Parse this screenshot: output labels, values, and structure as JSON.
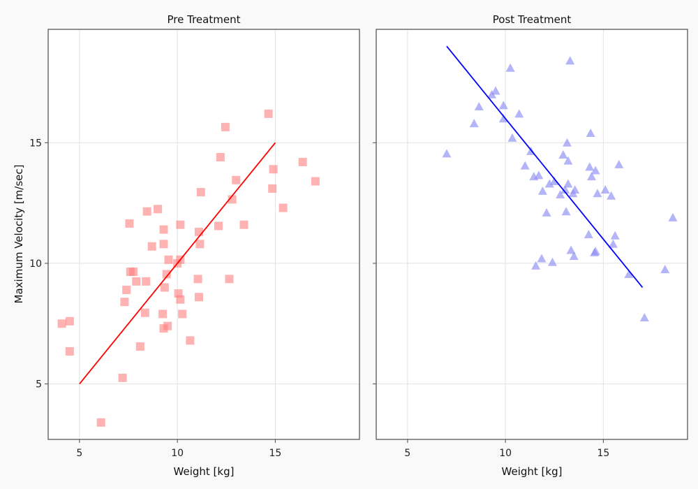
{
  "chart_data": [
    {
      "type": "scatter",
      "title": "Pre Treatment",
      "xlabel": "Weight [kg]",
      "ylabel": "Maximum Velocity [m/sec]",
      "xlim": [
        3.4,
        19.3
      ],
      "ylim": [
        2.7,
        19.7
      ],
      "xticks": [
        5,
        10,
        15
      ],
      "yticks": [
        5,
        10,
        15
      ],
      "grid": true,
      "marker": "square",
      "color": "#ff7f7f",
      "line_color": "#ff0000",
      "points": [
        [
          4.1,
          7.5
        ],
        [
          4.5,
          7.6
        ],
        [
          4.5,
          6.35
        ],
        [
          6.1,
          3.4
        ],
        [
          7.2,
          5.25
        ],
        [
          7.3,
          8.4
        ],
        [
          7.4,
          8.9
        ],
        [
          7.55,
          11.65
        ],
        [
          7.6,
          9.65
        ],
        [
          7.75,
          9.65
        ],
        [
          7.9,
          9.25
        ],
        [
          8.1,
          6.55
        ],
        [
          8.35,
          7.95
        ],
        [
          8.4,
          9.25
        ],
        [
          8.45,
          12.15
        ],
        [
          8.7,
          10.7
        ],
        [
          9.0,
          12.25
        ],
        [
          9.25,
          7.9
        ],
        [
          9.3,
          7.3
        ],
        [
          9.3,
          10.8
        ],
        [
          9.3,
          11.4
        ],
        [
          9.35,
          9.0
        ],
        [
          9.45,
          9.55
        ],
        [
          9.5,
          7.4
        ],
        [
          9.55,
          10.15
        ],
        [
          10.0,
          10.0
        ],
        [
          10.05,
          8.75
        ],
        [
          10.15,
          10.15
        ],
        [
          10.15,
          8.5
        ],
        [
          10.15,
          11.6
        ],
        [
          10.25,
          7.9
        ],
        [
          10.65,
          6.8
        ],
        [
          11.05,
          9.35
        ],
        [
          11.1,
          8.6
        ],
        [
          11.1,
          11.3
        ],
        [
          11.15,
          10.8
        ],
        [
          11.2,
          12.95
        ],
        [
          12.1,
          11.55
        ],
        [
          12.2,
          14.4
        ],
        [
          12.45,
          15.65
        ],
        [
          12.65,
          9.35
        ],
        [
          12.8,
          12.65
        ],
        [
          13.0,
          13.45
        ],
        [
          13.4,
          11.6
        ],
        [
          14.65,
          16.2
        ],
        [
          14.85,
          13.1
        ],
        [
          14.9,
          13.9
        ],
        [
          15.4,
          12.3
        ],
        [
          16.4,
          14.2
        ],
        [
          17.05,
          13.4
        ]
      ],
      "fit_line": {
        "x": [
          5,
          15
        ],
        "y": [
          5,
          15
        ]
      }
    },
    {
      "type": "scatter",
      "title": "Post Treatment",
      "xlabel": "Weight [kg]",
      "ylabel": "",
      "xlim": [
        3.4,
        19.3
      ],
      "ylim": [
        2.7,
        19.7
      ],
      "xticks": [
        5,
        10,
        15
      ],
      "yticks": [
        5,
        10,
        15
      ],
      "grid": true,
      "marker": "triangle",
      "color": "#8c8cf5",
      "line_color": "#0000ff",
      "points": [
        [
          7.0,
          14.55
        ],
        [
          8.4,
          15.8
        ],
        [
          8.65,
          16.5
        ],
        [
          9.3,
          17.0
        ],
        [
          9.5,
          17.15
        ],
        [
          9.9,
          16.55
        ],
        [
          9.9,
          16.0
        ],
        [
          10.25,
          18.1
        ],
        [
          10.35,
          15.2
        ],
        [
          10.7,
          16.2
        ],
        [
          11.0,
          14.05
        ],
        [
          11.3,
          14.65
        ],
        [
          11.45,
          13.6
        ],
        [
          11.55,
          9.9
        ],
        [
          11.7,
          13.65
        ],
        [
          11.85,
          10.2
        ],
        [
          11.9,
          13.0
        ],
        [
          12.1,
          12.1
        ],
        [
          12.25,
          13.3
        ],
        [
          12.4,
          10.05
        ],
        [
          12.5,
          13.4
        ],
        [
          12.8,
          12.85
        ],
        [
          12.95,
          14.5
        ],
        [
          13.05,
          13.05
        ],
        [
          13.1,
          12.15
        ],
        [
          13.15,
          15.0
        ],
        [
          13.2,
          13.3
        ],
        [
          13.2,
          14.25
        ],
        [
          13.3,
          18.4
        ],
        [
          13.35,
          10.55
        ],
        [
          13.45,
          12.9
        ],
        [
          13.5,
          10.3
        ],
        [
          13.55,
          13.05
        ],
        [
          14.25,
          11.2
        ],
        [
          14.3,
          14.0
        ],
        [
          14.35,
          15.4
        ],
        [
          14.4,
          13.6
        ],
        [
          14.55,
          10.45
        ],
        [
          14.6,
          13.85
        ],
        [
          14.6,
          10.5
        ],
        [
          14.7,
          12.9
        ],
        [
          15.1,
          13.05
        ],
        [
          15.4,
          12.8
        ],
        [
          15.5,
          10.8
        ],
        [
          15.6,
          11.15
        ],
        [
          15.8,
          14.1
        ],
        [
          16.3,
          9.55
        ],
        [
          17.1,
          7.75
        ],
        [
          18.15,
          9.75
        ],
        [
          18.55,
          11.9
        ]
      ],
      "fit_line": {
        "x": [
          7,
          17
        ],
        "y": [
          19,
          9
        ]
      }
    }
  ]
}
